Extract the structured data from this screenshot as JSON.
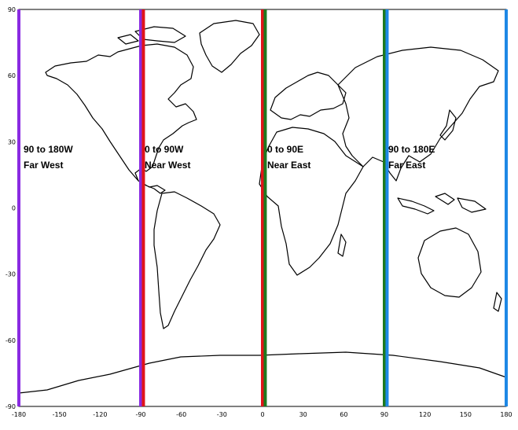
{
  "map": {
    "axes": {
      "x_ticks": [
        "-180",
        "-150",
        "-120",
        "-90",
        "-60",
        "-30",
        "0",
        "30",
        "60",
        "90",
        "120",
        "150",
        "180"
      ],
      "y_ticks": [
        "90",
        "60",
        "30",
        "0",
        "-30",
        "-60",
        "-90"
      ]
    },
    "dividers": [
      {
        "longitude": -180,
        "color": "#8a2be2"
      },
      {
        "longitude": -90,
        "color": "#8a2be2"
      },
      {
        "longitude": -88,
        "color": "#e0141a"
      },
      {
        "longitude": 0,
        "color": "#e0141a"
      },
      {
        "longitude": 2,
        "color": "#1f7a1f"
      },
      {
        "longitude": 90,
        "color": "#1f7a1f"
      },
      {
        "longitude": 92,
        "color": "#1e88e5"
      },
      {
        "longitude": 180,
        "color": "#1e88e5"
      }
    ],
    "regions": [
      {
        "range": "90 to 180W",
        "name": "Far West"
      },
      {
        "range": "0 to 90W",
        "name": "Near West"
      },
      {
        "range": "0 to 90E",
        "name": "Near East"
      },
      {
        "range": "90 to 180E",
        "name": "Far East"
      }
    ]
  }
}
